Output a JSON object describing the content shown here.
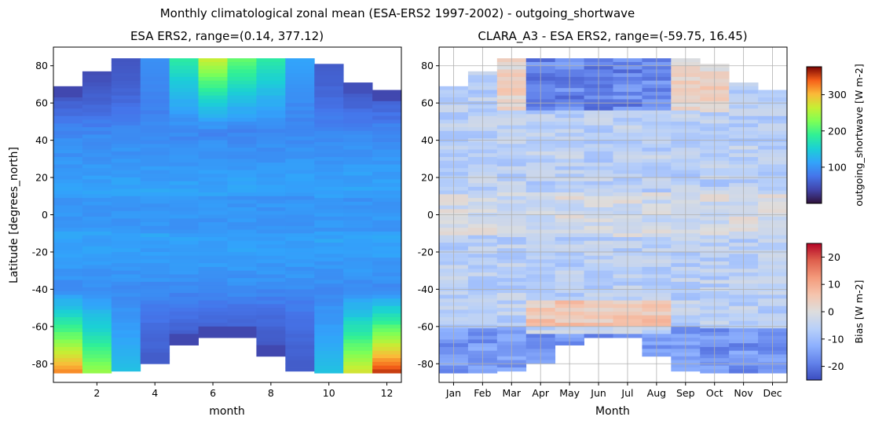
{
  "chart_data": [
    {
      "type": "heatmap",
      "suptitle": "Monthly climatological zonal mean (ESA-ERS2 1997-2002) - outgoing_shortwave",
      "title": "ESA ERS2, range=(0.14, 377.12)",
      "xlabel": "month",
      "ylabel": "Latitude [degrees_north]",
      "xlim": [
        0.5,
        12.5
      ],
      "ylim": [
        -90,
        90
      ],
      "xticks": [
        "2",
        "4",
        "6",
        "8",
        "10",
        "12"
      ],
      "yticks": [
        "80",
        "60",
        "40",
        "20",
        "0",
        "-20",
        "-40",
        "-60",
        "-80"
      ],
      "months": [
        1,
        2,
        3,
        4,
        5,
        6,
        7,
        8,
        9,
        10,
        11,
        12
      ],
      "lat_north_limit": [
        69,
        77,
        84,
        84,
        84,
        84,
        84,
        84,
        84,
        81,
        71,
        67
      ],
      "lat_south_limit": [
        -84,
        -84,
        -84,
        -80,
        -70,
        -65,
        -66,
        -76,
        -84,
        -84,
        -84,
        -84
      ],
      "colormap": "turbo",
      "colorbar": {
        "label": "outgoing_shortwave [W m-2]",
        "range": [
          0.14,
          377.12
        ],
        "ticks": [
          "100",
          "200",
          "300"
        ]
      }
    },
    {
      "type": "heatmap",
      "title": "CLARA_A3 - ESA ERS2, range=(-59.75, 16.45)",
      "xlabel": "Month",
      "ylabel": "",
      "ylim": [
        -90,
        90
      ],
      "categories": [
        "Jan",
        "Feb",
        "Mar",
        "Apr",
        "May",
        "Jun",
        "Jul",
        "Aug",
        "Sep",
        "Oct",
        "Nov",
        "Dec"
      ],
      "yticks": [
        "80",
        "60",
        "40",
        "20",
        "0",
        "-20",
        "-40",
        "-60",
        "-80"
      ],
      "grid": true,
      "colormap": "coolwarm",
      "colorbar": {
        "label": "Bias [W m-2]",
        "range": [
          -25,
          25
        ],
        "ticks": [
          "20",
          "10",
          "0",
          "-10",
          "-20"
        ]
      }
    }
  ]
}
